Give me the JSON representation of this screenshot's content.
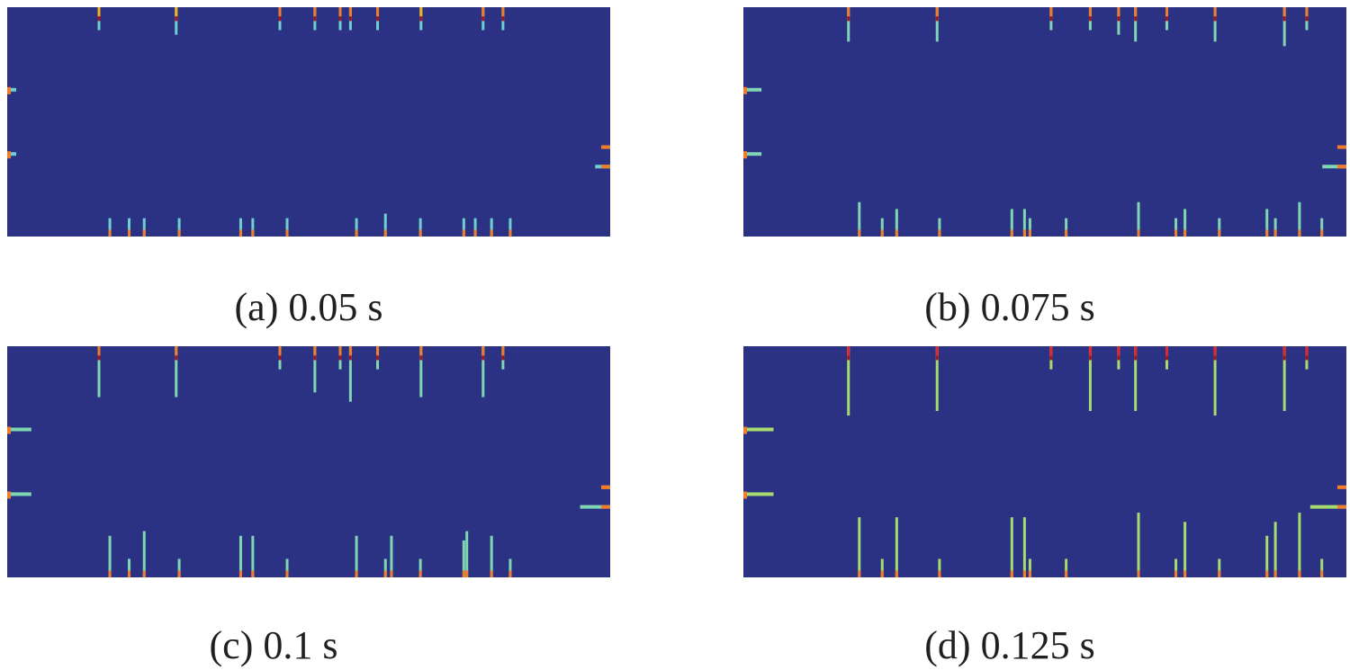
{
  "colors": {
    "background": "#2b3183",
    "cyan": "#6ecfcf",
    "teal": "#7fd6b2",
    "green": "#a6dc6e",
    "orange": "#f07d2c",
    "red": "#e1282d",
    "darkred": "#9e1622",
    "yellow": "#f2b21b"
  },
  "panels": [
    {
      "caption": "(a) 0.05 s",
      "top_bars": [
        {
          "x": 0.15,
          "len": 0.1,
          "c": "cyan",
          "cap": "yellow"
        },
        {
          "x": 0.278,
          "len": 0.12,
          "c": "cyan",
          "cap": "yellow"
        },
        {
          "x": 0.45,
          "len": 0.1,
          "c": "cyan",
          "cap": "orange"
        },
        {
          "x": 0.508,
          "len": 0.1,
          "c": "cyan",
          "cap": "orange"
        },
        {
          "x": 0.55,
          "len": 0.1,
          "c": "cyan",
          "cap": "orange"
        },
        {
          "x": 0.567,
          "len": 0.1,
          "c": "cyan",
          "cap": "orange"
        },
        {
          "x": 0.612,
          "len": 0.1,
          "c": "cyan",
          "cap": "orange"
        },
        {
          "x": 0.684,
          "len": 0.1,
          "c": "cyan",
          "cap": "yellow"
        },
        {
          "x": 0.787,
          "len": 0.1,
          "c": "cyan",
          "cap": "orange"
        },
        {
          "x": 0.82,
          "len": 0.1,
          "c": "cyan",
          "cap": "orange"
        }
      ],
      "bottom_bars": [
        {
          "x": 0.168,
          "len": 0.08,
          "c": "cyan"
        },
        {
          "x": 0.2,
          "len": 0.08,
          "c": "cyan"
        },
        {
          "x": 0.225,
          "len": 0.08,
          "c": "cyan"
        },
        {
          "x": 0.283,
          "len": 0.08,
          "c": "cyan"
        },
        {
          "x": 0.385,
          "len": 0.08,
          "c": "cyan"
        },
        {
          "x": 0.405,
          "len": 0.08,
          "c": "cyan"
        },
        {
          "x": 0.462,
          "len": 0.08,
          "c": "cyan"
        },
        {
          "x": 0.577,
          "len": 0.08,
          "c": "cyan"
        },
        {
          "x": 0.625,
          "len": 0.1,
          "c": "cyan"
        },
        {
          "x": 0.683,
          "len": 0.08,
          "c": "cyan"
        },
        {
          "x": 0.755,
          "len": 0.08,
          "c": "cyan"
        },
        {
          "x": 0.774,
          "len": 0.08,
          "c": "cyan"
        },
        {
          "x": 0.801,
          "len": 0.08,
          "c": "cyan"
        },
        {
          "x": 0.832,
          "len": 0.08,
          "c": "cyan"
        }
      ],
      "left_bars": [
        {
          "y": 0.36,
          "len": 0.015,
          "c": "cyan"
        },
        {
          "y": 0.64,
          "len": 0.015,
          "c": "cyan"
        }
      ],
      "right_bars": [
        {
          "y": 0.61,
          "len": 0.012,
          "c": "yellow"
        },
        {
          "y": 0.695,
          "len": 0.025,
          "c": "cyan"
        }
      ]
    },
    {
      "caption": "(b) 0.075 s",
      "top_bars": [
        {
          "x": 0.172,
          "len": 0.15,
          "c": "teal",
          "cap": "orange"
        },
        {
          "x": 0.319,
          "len": 0.15,
          "c": "teal",
          "cap": "orange"
        },
        {
          "x": 0.508,
          "len": 0.1,
          "c": "teal",
          "cap": "orange"
        },
        {
          "x": 0.573,
          "len": 0.1,
          "c": "teal",
          "cap": "orange"
        },
        {
          "x": 0.62,
          "len": 0.12,
          "c": "teal",
          "cap": "orange"
        },
        {
          "x": 0.648,
          "len": 0.15,
          "c": "teal",
          "cap": "orange"
        },
        {
          "x": 0.7,
          "len": 0.1,
          "c": "teal",
          "cap": "orange"
        },
        {
          "x": 0.78,
          "len": 0.15,
          "c": "teal",
          "cap": "orange"
        },
        {
          "x": 0.895,
          "len": 0.17,
          "c": "teal",
          "cap": "orange"
        },
        {
          "x": 0.932,
          "len": 0.1,
          "c": "teal",
          "cap": "orange"
        }
      ],
      "bottom_bars": [
        {
          "x": 0.19,
          "len": 0.15,
          "c": "teal"
        },
        {
          "x": 0.228,
          "len": 0.08,
          "c": "teal"
        },
        {
          "x": 0.252,
          "len": 0.12,
          "c": "teal"
        },
        {
          "x": 0.323,
          "len": 0.08,
          "c": "teal"
        },
        {
          "x": 0.443,
          "len": 0.12,
          "c": "teal"
        },
        {
          "x": 0.464,
          "len": 0.12,
          "c": "teal"
        },
        {
          "x": 0.473,
          "len": 0.08,
          "c": "teal"
        },
        {
          "x": 0.533,
          "len": 0.08,
          "c": "teal"
        },
        {
          "x": 0.653,
          "len": 0.15,
          "c": "teal"
        },
        {
          "x": 0.715,
          "len": 0.08,
          "c": "teal"
        },
        {
          "x": 0.73,
          "len": 0.12,
          "c": "teal"
        },
        {
          "x": 0.787,
          "len": 0.08,
          "c": "teal"
        },
        {
          "x": 0.866,
          "len": 0.12,
          "c": "teal"
        },
        {
          "x": 0.88,
          "len": 0.08,
          "c": "teal"
        },
        {
          "x": 0.92,
          "len": 0.15,
          "c": "teal"
        },
        {
          "x": 0.957,
          "len": 0.08,
          "c": "teal"
        }
      ],
      "left_bars": [
        {
          "y": 0.36,
          "len": 0.03,
          "c": "teal"
        },
        {
          "y": 0.64,
          "len": 0.03,
          "c": "teal"
        }
      ],
      "right_bars": [
        {
          "y": 0.61,
          "len": 0.015,
          "c": "orange"
        },
        {
          "y": 0.695,
          "len": 0.04,
          "c": "teal"
        }
      ]
    },
    {
      "caption": "(c) 0.1 s",
      "top_bars": [
        {
          "x": 0.15,
          "len": 0.22,
          "c": "teal",
          "cap": "orange"
        },
        {
          "x": 0.278,
          "len": 0.22,
          "c": "teal",
          "cap": "orange"
        },
        {
          "x": 0.45,
          "len": 0.1,
          "c": "teal",
          "cap": "orange"
        },
        {
          "x": 0.508,
          "len": 0.2,
          "c": "teal",
          "cap": "orange"
        },
        {
          "x": 0.55,
          "len": 0.1,
          "c": "teal",
          "cap": "orange"
        },
        {
          "x": 0.567,
          "len": 0.24,
          "c": "teal",
          "cap": "orange"
        },
        {
          "x": 0.612,
          "len": 0.1,
          "c": "teal",
          "cap": "orange"
        },
        {
          "x": 0.684,
          "len": 0.22,
          "c": "teal",
          "cap": "orange"
        },
        {
          "x": 0.787,
          "len": 0.22,
          "c": "teal",
          "cap": "orange"
        },
        {
          "x": 0.82,
          "len": 0.1,
          "c": "teal",
          "cap": "orange"
        }
      ],
      "bottom_bars": [
        {
          "x": 0.168,
          "len": 0.18,
          "c": "teal"
        },
        {
          "x": 0.2,
          "len": 0.08,
          "c": "teal"
        },
        {
          "x": 0.225,
          "len": 0.2,
          "c": "teal"
        },
        {
          "x": 0.283,
          "len": 0.08,
          "c": "teal"
        },
        {
          "x": 0.385,
          "len": 0.18,
          "c": "teal"
        },
        {
          "x": 0.405,
          "len": 0.18,
          "c": "teal"
        },
        {
          "x": 0.462,
          "len": 0.08,
          "c": "teal"
        },
        {
          "x": 0.577,
          "len": 0.18,
          "c": "teal"
        },
        {
          "x": 0.625,
          "len": 0.08,
          "c": "teal"
        },
        {
          "x": 0.635,
          "len": 0.18,
          "c": "teal"
        },
        {
          "x": 0.683,
          "len": 0.08,
          "c": "teal"
        },
        {
          "x": 0.755,
          "len": 0.16,
          "c": "teal"
        },
        {
          "x": 0.76,
          "len": 0.2,
          "c": "teal"
        },
        {
          "x": 0.801,
          "len": 0.18,
          "c": "teal"
        },
        {
          "x": 0.832,
          "len": 0.08,
          "c": "teal"
        }
      ],
      "left_bars": [
        {
          "y": 0.36,
          "len": 0.04,
          "c": "teal"
        },
        {
          "y": 0.64,
          "len": 0.04,
          "c": "teal"
        }
      ],
      "right_bars": [
        {
          "y": 0.61,
          "len": 0.015,
          "c": "orange"
        },
        {
          "y": 0.695,
          "len": 0.05,
          "c": "teal"
        }
      ]
    },
    {
      "caption": "(d) 0.125 s",
      "top_bars": [
        {
          "x": 0.172,
          "len": 0.3,
          "c": "green",
          "cap": "red"
        },
        {
          "x": 0.319,
          "len": 0.28,
          "c": "green",
          "cap": "red"
        },
        {
          "x": 0.508,
          "len": 0.1,
          "c": "green",
          "cap": "red"
        },
        {
          "x": 0.573,
          "len": 0.28,
          "c": "green",
          "cap": "red"
        },
        {
          "x": 0.62,
          "len": 0.1,
          "c": "green",
          "cap": "red"
        },
        {
          "x": 0.648,
          "len": 0.28,
          "c": "green",
          "cap": "red"
        },
        {
          "x": 0.7,
          "len": 0.1,
          "c": "green",
          "cap": "red"
        },
        {
          "x": 0.78,
          "len": 0.3,
          "c": "green",
          "cap": "red"
        },
        {
          "x": 0.895,
          "len": 0.28,
          "c": "green",
          "cap": "red"
        },
        {
          "x": 0.932,
          "len": 0.1,
          "c": "green",
          "cap": "red"
        }
      ],
      "bottom_bars": [
        {
          "x": 0.19,
          "len": 0.26,
          "c": "green"
        },
        {
          "x": 0.228,
          "len": 0.08,
          "c": "green"
        },
        {
          "x": 0.252,
          "len": 0.26,
          "c": "green"
        },
        {
          "x": 0.323,
          "len": 0.08,
          "c": "green"
        },
        {
          "x": 0.443,
          "len": 0.26,
          "c": "green"
        },
        {
          "x": 0.464,
          "len": 0.26,
          "c": "green"
        },
        {
          "x": 0.473,
          "len": 0.08,
          "c": "green"
        },
        {
          "x": 0.533,
          "len": 0.08,
          "c": "green"
        },
        {
          "x": 0.653,
          "len": 0.28,
          "c": "green"
        },
        {
          "x": 0.715,
          "len": 0.08,
          "c": "green"
        },
        {
          "x": 0.73,
          "len": 0.24,
          "c": "green"
        },
        {
          "x": 0.787,
          "len": 0.08,
          "c": "green"
        },
        {
          "x": 0.866,
          "len": 0.18,
          "c": "green"
        },
        {
          "x": 0.88,
          "len": 0.24,
          "c": "green"
        },
        {
          "x": 0.92,
          "len": 0.28,
          "c": "green"
        },
        {
          "x": 0.957,
          "len": 0.08,
          "c": "green"
        }
      ],
      "left_bars": [
        {
          "y": 0.36,
          "len": 0.05,
          "c": "green"
        },
        {
          "y": 0.64,
          "len": 0.05,
          "c": "green"
        }
      ],
      "right_bars": [
        {
          "y": 0.61,
          "len": 0.015,
          "c": "red"
        },
        {
          "y": 0.695,
          "len": 0.06,
          "c": "green"
        }
      ]
    }
  ]
}
